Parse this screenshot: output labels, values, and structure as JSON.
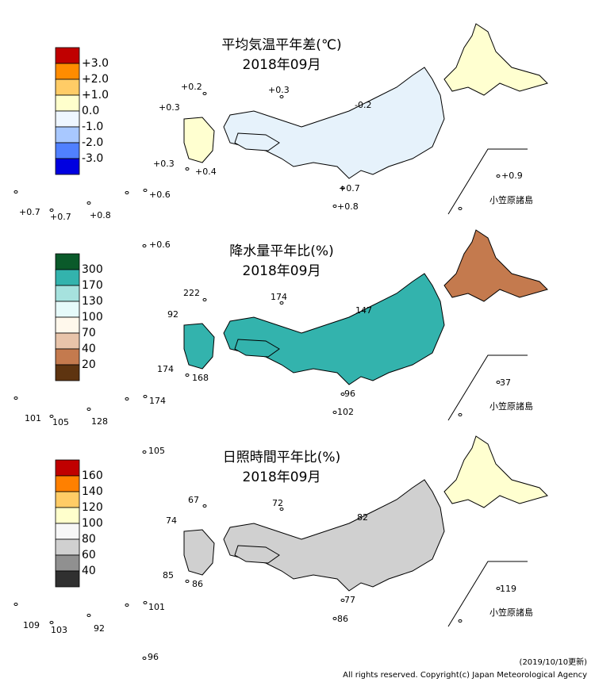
{
  "panels": [
    {
      "title": "平均気温平年差(℃)",
      "month": "2018年09月",
      "legend": {
        "labels": [
          "+3.0",
          "+2.0",
          "+1.0",
          "0.0",
          "-1.0",
          "-2.0",
          "-3.0"
        ],
        "colors": [
          "#c00000",
          "#ff8c00",
          "#ffcc66",
          "#ffffcc",
          "#eef6ff",
          "#a8c8ff",
          "#5080ff",
          "#0000e0"
        ]
      },
      "stations": [
        "+0.2",
        "+0.3",
        "+0.3",
        "-0.2",
        "+0.3",
        "+0.4",
        "+0.6",
        "+0.7",
        "+0.8",
        "+0.9",
        "+0.7",
        "+0.7",
        "+0.8",
        "+0.6"
      ],
      "region_label": "小笠原諸島"
    },
    {
      "title": "降水量平年比(%)",
      "month": "2018年09月",
      "legend": {
        "labels": [
          "300",
          "170",
          "130",
          "100",
          "70",
          "40",
          "20"
        ],
        "colors": [
          "#0a5a2a",
          "#33b3ad",
          "#a6e2de",
          "#e6fafa",
          "#fff8ec",
          "#e8c4aa",
          "#c47a4e",
          "#5e3410"
        ]
      },
      "stations": [
        "222",
        "174",
        "92",
        "147",
        "174",
        "168",
        "96",
        "102",
        "37",
        "101",
        "105",
        "128",
        "174",
        "105"
      ],
      "region_label": "小笠原諸島"
    },
    {
      "title": "日照時間平年比(%)",
      "month": "2018年09月",
      "legend": {
        "labels": [
          "160",
          "140",
          "120",
          "100",
          "80",
          "60",
          "40"
        ],
        "colors": [
          "#c00000",
          "#ff8000",
          "#ffcc66",
          "#ffffcc",
          "#f7f7f7",
          "#d0d0d0",
          "#909090",
          "#303030"
        ]
      },
      "stations": [
        "67",
        "72",
        "74",
        "82",
        "85",
        "86",
        "77",
        "86",
        "119",
        "109",
        "103",
        "92",
        "101",
        "96"
      ],
      "region_label": "小笠原諸島"
    }
  ],
  "footer": {
    "updated": "(2019/10/10更新)",
    "copyright": "All rights reserved. Copyright(c) Japan Meteorological Agency"
  }
}
